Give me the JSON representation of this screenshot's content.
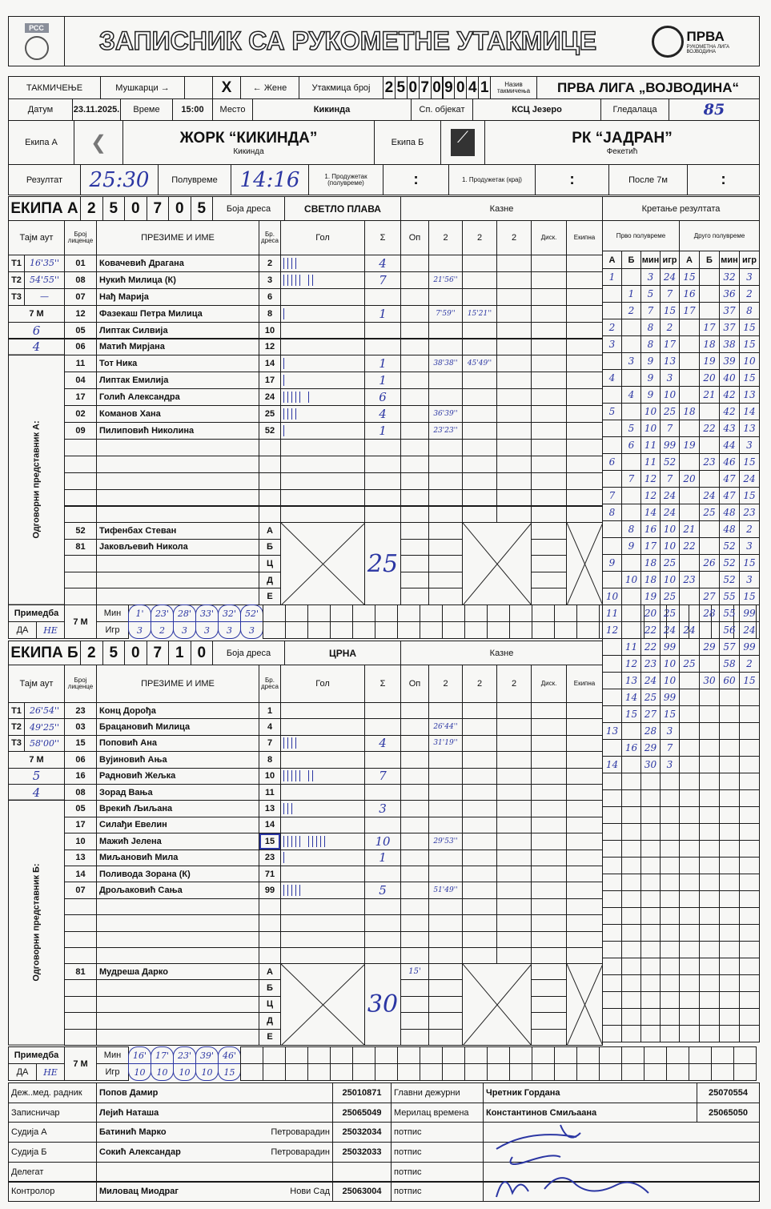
{
  "header": {
    "title": "ЗАПИСНИК СА РУКОМЕТНЕ УТАКМИЦЕ",
    "federation_logo_text": "РСС",
    "league_logo_text": "ПРВА",
    "league_logo_subtext": "РУКОМЕТНА ЛИГА ВОЈВОДИНА"
  },
  "competition": {
    "label": "ТАКМИЧЕЊЕ",
    "men": "Мушкарци →",
    "mark": "X",
    "women": "← Жене",
    "match_no_label": "Утакмица број",
    "match_no_digits": [
      "2",
      "5",
      "0",
      "7",
      "0",
      "9",
      "0",
      "4",
      "1"
    ],
    "name_label": "Назив такмичења",
    "name": "ПРВА ЛИГА „ВОЈВОДИНА“"
  },
  "info": {
    "date_label": "Датум",
    "date": "23.11.2025.",
    "time_label": "Време",
    "time": "15:00",
    "place_label": "Место",
    "place": "Кикинда",
    "venue_label": "Сп. објекат",
    "venue": "КСЦ Језеро",
    "spectators_label": "Гледалаца",
    "spectators": "85"
  },
  "teams": {
    "a_label": "Екипа А",
    "a_name": "ЖОРК “КИКИНДА”",
    "a_city": "Кикинда",
    "b_label": "Екипа Б",
    "b_name": "РК “ЈАДРАН”",
    "b_city": "Фекетић"
  },
  "result": {
    "label": "Резултат",
    "value": "25:30",
    "half_label": "Полувреме",
    "half": "14:16",
    "ot1_half_label": "1. Продужетак (полувреме)",
    "ot1_half": ":",
    "ot1_end_label": "1. Продужетак (крај)",
    "ot1_end": ":",
    "after7m_label": "После 7м",
    "after7m": ":"
  },
  "columns": [
    "Тајм аут",
    "Број лиценце",
    "ПРЕЗИМЕ И ИМЕ",
    "Бр. дреса",
    "Гол",
    "Σ",
    "Оп",
    "2",
    "2",
    "2",
    "Диск.",
    "Екипна"
  ],
  "labels": {
    "jersey_label": "Боја дреса",
    "penalties": "Казне",
    "progress": "Кретање резултата",
    "first_half": "Прво полувреме",
    "second_half": "Друго полувреме",
    "score_cols": [
      "А",
      "Б",
      "мин",
      "игр"
    ],
    "seven_m": "7 М",
    "remark": "Примедба",
    "yes": "ДА",
    "no": "НЕ",
    "min": "Мин",
    "player": "Игр",
    "official_letters": [
      "А",
      "Б",
      "Ц",
      "Д",
      "Е"
    ]
  },
  "team_a": {
    "label": "ЕКИПА А",
    "code_digits": [
      "2",
      "5",
      "0",
      "7",
      "0",
      "5"
    ],
    "jersey": "СВЕТЛО ПЛАВА",
    "timeouts": [
      {
        "label": "T1",
        "value": "16'35''"
      },
      {
        "label": "T2",
        "value": "54'55''"
      },
      {
        "label": "T3",
        "value": "—"
      }
    ],
    "seven_m_handwritten": [
      "6",
      "4"
    ],
    "officials_label": "Одговорни представник А:",
    "players": [
      {
        "lic": "01",
        "name": "Ковачевић Драгана",
        "no": "2",
        "sum": "4",
        "pen": [
          "",
          "",
          ""
        ]
      },
      {
        "lic": "08",
        "name": "Нукић Милица (К)",
        "no": "3",
        "sum": "7",
        "pen": [
          "21'56''",
          "",
          ""
        ]
      },
      {
        "lic": "07",
        "name": "Нађ Марија",
        "no": "6",
        "sum": "",
        "pen": [
          "",
          "",
          ""
        ]
      },
      {
        "lic": "12",
        "name": "Фазекаш Петра Милица",
        "no": "8",
        "sum": "1",
        "pen": [
          "7'59''",
          "15'21''",
          ""
        ]
      },
      {
        "lic": "05",
        "name": "Липтак Силвија",
        "no": "10",
        "sum": "",
        "pen": [
          "",
          "",
          ""
        ]
      },
      {
        "lic": "06",
        "name": "Матић Мирјана",
        "no": "12",
        "sum": "",
        "pen": [
          "",
          "",
          ""
        ]
      },
      {
        "lic": "11",
        "name": "Тот Ника",
        "no": "14",
        "sum": "1",
        "pen": [
          "38'38''",
          "45'49''",
          ""
        ]
      },
      {
        "lic": "04",
        "name": "Липтак Емилија",
        "no": "17",
        "sum": "1",
        "pen": [
          "",
          "",
          ""
        ]
      },
      {
        "lic": "17",
        "name": "Голић Александра",
        "no": "24",
        "sum": "6",
        "pen": [
          "",
          "",
          ""
        ]
      },
      {
        "lic": "02",
        "name": "Команов Хана",
        "no": "25",
        "sum": "4",
        "pen": [
          "36'39''",
          "",
          ""
        ]
      },
      {
        "lic": "09",
        "name": "Пилиповић Николина",
        "no": "52",
        "sum": "1",
        "pen": [
          "23'23''",
          "",
          ""
        ]
      }
    ],
    "officials": [
      {
        "lic": "52",
        "name": "Тифенбах Стеван",
        "op": ""
      },
      {
        "lic": "81",
        "name": "Јаковљевић Никола",
        "op": ""
      }
    ],
    "total": "25",
    "seven_m": {
      "min": [
        "1'",
        "23'",
        "28'",
        "33'",
        "32'",
        "52'"
      ],
      "player": [
        "3",
        "2",
        "3",
        "3",
        "3",
        "3"
      ]
    }
  },
  "team_b": {
    "label": "ЕКИПА Б",
    "code_digits": [
      "2",
      "5",
      "0",
      "7",
      "1",
      "0"
    ],
    "jersey": "ЦРНА",
    "timeouts": [
      {
        "label": "T1",
        "value": "26'54''"
      },
      {
        "label": "T2",
        "value": "49'25''"
      },
      {
        "label": "T3",
        "value": "58'00''"
      }
    ],
    "seven_m_handwritten": [
      "5",
      "4"
    ],
    "officials_label": "Одговорни представник Б:",
    "players": [
      {
        "lic": "23",
        "name": "Конц Дорођа",
        "no": "1",
        "sum": "",
        "pen": [
          "",
          "",
          ""
        ]
      },
      {
        "lic": "03",
        "name": "Брацановић Милица",
        "no": "4",
        "sum": "",
        "pen": [
          "26'44''",
          "",
          ""
        ]
      },
      {
        "lic": "15",
        "name": "Поповић Ана",
        "no": "7",
        "sum": "4",
        "pen": [
          "31'19''",
          "",
          ""
        ]
      },
      {
        "lic": "06",
        "name": "Вујиновић Ања",
        "no": "8",
        "sum": "",
        "pen": [
          "",
          "",
          ""
        ]
      },
      {
        "lic": "16",
        "name": "Радновић Жељка",
        "no": "10",
        "sum": "7",
        "pen": [
          "",
          "",
          ""
        ]
      },
      {
        "lic": "08",
        "name": "Зорад Вања",
        "no": "11",
        "sum": "",
        "pen": [
          "",
          "",
          ""
        ]
      },
      {
        "lic": "05",
        "name": "Врекић Љиљана",
        "no": "13",
        "sum": "3",
        "pen": [
          "",
          "",
          ""
        ]
      },
      {
        "lic": "17",
        "name": "Силађи Евелин",
        "no": "14",
        "sum": "",
        "pen": [
          "",
          "",
          ""
        ]
      },
      {
        "lic": "10",
        "name": "Мажић Јелена",
        "no": "15",
        "sum": "10",
        "pen": [
          "29'53''",
          "",
          ""
        ],
        "circled": true
      },
      {
        "lic": "13",
        "name": "Миљановић Мила",
        "no": "23",
        "sum": "1",
        "pen": [
          "",
          "",
          ""
        ]
      },
      {
        "lic": "14",
        "name": "Поливода Зорана (К)",
        "no": "71",
        "sum": "",
        "pen": [
          "",
          "",
          ""
        ]
      },
      {
        "lic": "07",
        "name": "Дрољаковић Сања",
        "no": "99",
        "sum": "5",
        "pen": [
          "51'49''",
          "",
          ""
        ]
      }
    ],
    "officials": [
      {
        "lic": "81",
        "name": "Мудреша Дарко",
        "op": "15'"
      }
    ],
    "total": "30",
    "seven_m": {
      "min": [
        "16'",
        "17'",
        "23'",
        "39'",
        "46'"
      ],
      "player": [
        "10",
        "10",
        "10",
        "10",
        "15"
      ]
    }
  },
  "score_progress": {
    "first_half": [
      [
        "1",
        "",
        "3",
        "24"
      ],
      [
        "",
        "1",
        "5",
        "7"
      ],
      [
        "",
        "2",
        "7",
        "15"
      ],
      [
        "2",
        "",
        "8",
        "2"
      ],
      [
        "3",
        "",
        "8",
        "17"
      ],
      [
        "",
        "3",
        "9",
        "13"
      ],
      [
        "4",
        "",
        "9",
        "3"
      ],
      [
        "",
        "4",
        "9",
        "10"
      ],
      [
        "5",
        "",
        "10",
        "25"
      ],
      [
        "",
        "5",
        "10",
        "7"
      ],
      [
        "",
        "6",
        "11",
        "99"
      ],
      [
        "6",
        "",
        "11",
        "52"
      ],
      [
        "",
        "7",
        "12",
        "7"
      ],
      [
        "7",
        "",
        "12",
        "24"
      ],
      [
        "8",
        "",
        "14",
        "24"
      ],
      [
        "",
        "8",
        "16",
        "10"
      ],
      [
        "",
        "9",
        "17",
        "10"
      ],
      [
        "9",
        "",
        "18",
        "25"
      ],
      [
        "",
        "10",
        "18",
        "10"
      ],
      [
        "10",
        "",
        "19",
        "25"
      ],
      [
        "11",
        "",
        "20",
        "25"
      ],
      [
        "12",
        "",
        "22",
        "24"
      ],
      [
        "",
        "11",
        "22",
        "99"
      ],
      [
        "",
        "12",
        "23",
        "10"
      ],
      [
        "",
        "13",
        "24",
        "10"
      ],
      [
        "",
        "14",
        "25",
        "99"
      ],
      [
        "",
        "15",
        "27",
        "15"
      ],
      [
        "13",
        "",
        "28",
        "3"
      ],
      [
        "",
        "16",
        "29",
        "7"
      ],
      [
        "14",
        "",
        "30",
        "3"
      ]
    ],
    "second_half": [
      [
        "15",
        "",
        "32",
        "3"
      ],
      [
        "16",
        "",
        "36",
        "2"
      ],
      [
        "17",
        "",
        "37",
        "8"
      ],
      [
        "",
        "17",
        "37",
        "15"
      ],
      [
        "",
        "18",
        "38",
        "15"
      ],
      [
        "",
        "19",
        "39",
        "10"
      ],
      [
        "",
        "20",
        "40",
        "15"
      ],
      [
        "",
        "21",
        "42",
        "13"
      ],
      [
        "18",
        "",
        "42",
        "14"
      ],
      [
        "",
        "22",
        "43",
        "13"
      ],
      [
        "19",
        "",
        "44",
        "3"
      ],
      [
        "",
        "23",
        "46",
        "15"
      ],
      [
        "20",
        "",
        "47",
        "24"
      ],
      [
        "",
        "24",
        "47",
        "15"
      ],
      [
        "",
        "25",
        "48",
        "23"
      ],
      [
        "21",
        "",
        "48",
        "2"
      ],
      [
        "22",
        "",
        "52",
        "3"
      ],
      [
        "",
        "26",
        "52",
        "15"
      ],
      [
        "23",
        "",
        "52",
        "3"
      ],
      [
        "",
        "27",
        "55",
        "15"
      ],
      [
        "",
        "28",
        "55",
        "99"
      ],
      [
        "24",
        "",
        "56",
        "24"
      ],
      [
        "",
        "29",
        "57",
        "99"
      ],
      [
        "25",
        "",
        "58",
        "2"
      ],
      [
        "",
        "30",
        "60",
        "15"
      ]
    ]
  },
  "officials_footer": [
    {
      "label": "Деж..мед. радник",
      "name": "Попов Дамир",
      "city": "",
      "lic": "25010871",
      "label2": "Главни дежурни",
      "name2": "Чретник Гордана",
      "lic2": "25070554"
    },
    {
      "label": "Записничар",
      "name": "Лејић Наташа",
      "city": "",
      "lic": "25065049",
      "label2": "Мерилац времена",
      "name2": "Константинов Смиљаана",
      "lic2": "25065050"
    },
    {
      "label": "Судија А",
      "name": "Батинић Марко",
      "city": "Петроварадин",
      "lic": "25032034",
      "label2": "потпис",
      "name2": "",
      "lic2": ""
    },
    {
      "label": "Судија Б",
      "name": "Сокић Александар",
      "city": "Петроварадин",
      "lic": "25032033",
      "label2": "потпис",
      "name2": "",
      "lic2": ""
    },
    {
      "label": "Делегат",
      "name": "",
      "city": "",
      "lic": "",
      "label2": "потпис",
      "name2": "",
      "lic2": ""
    },
    {
      "label": "Контролор",
      "name": "Миловац Миодраг",
      "city": "Нови Сад",
      "lic": "25063004",
      "label2": "потпис",
      "name2": "",
      "lic2": ""
    }
  ],
  "colors": {
    "ink": "#1a1a1a",
    "handwriting": "#2b36a3",
    "paper": "#f7f7f5"
  }
}
